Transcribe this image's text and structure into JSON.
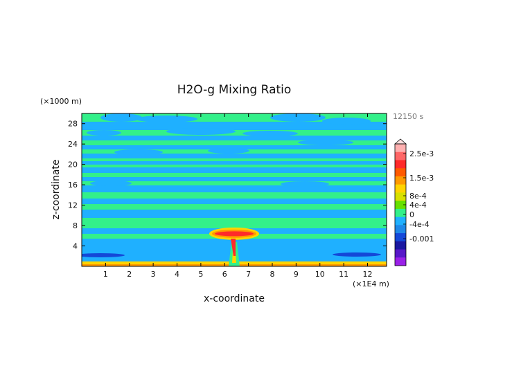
{
  "chart_data": {
    "type": "heatmap",
    "title": "H2O-g Mixing Ratio",
    "xlabel": "x-coordinate",
    "ylabel": "z-coordinate",
    "x_unit": "(×1E4 m)",
    "y_unit": "(×1000 m)",
    "time_label": "12150 s",
    "xlim": [
      0,
      12.8
    ],
    "ylim": [
      0,
      30
    ],
    "x_ticks": [
      "1",
      "2",
      "3",
      "4",
      "5",
      "6",
      "7",
      "8",
      "9",
      "10",
      "11",
      "12"
    ],
    "y_ticks": [
      "4",
      "8",
      "12",
      "16",
      "20",
      "24",
      "28"
    ],
    "colorbar": {
      "labels": [
        "2.5e-3",
        "1.5e-3",
        "8e-4",
        "4e-4",
        "0",
        "-4e-4",
        "-0.001"
      ],
      "colors": [
        "#ffb0b0",
        "#ff6666",
        "#ff2a2a",
        "#ff5a00",
        "#ff9a00",
        "#ffd400",
        "#d8e000",
        "#66e000",
        "#33f08a",
        "#1fb0ff",
        "#1e88e8",
        "#1448d8",
        "#1a18a0",
        "#5818c8",
        "#9a20e8"
      ]
    },
    "features": {
      "background": "#1fb0ff",
      "band": "#33f08a",
      "moist": "#ffd400",
      "warm": "#ff9a00",
      "hot": "#ff2a2a",
      "dry": "#1448d8"
    }
  }
}
